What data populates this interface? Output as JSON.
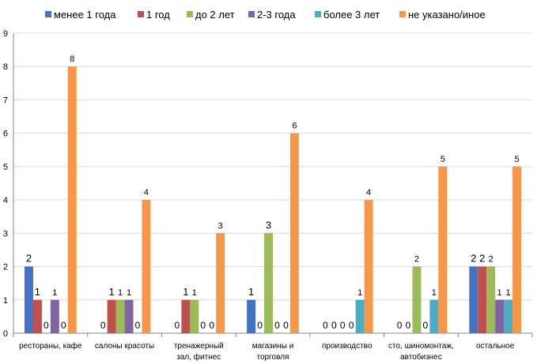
{
  "chart_data": {
    "type": "bar",
    "categories": [
      [
        "рестораны, кафе"
      ],
      [
        "салоны красоты"
      ],
      [
        "тренажерный",
        "зал, фитнес"
      ],
      [
        "магазины и",
        "торговля"
      ],
      [
        "производство"
      ],
      [
        "сто, шиномонтаж,",
        "автобизнес"
      ],
      [
        "остальное"
      ]
    ],
    "series": [
      {
        "name": "менее 1 года",
        "color": "#4472C4",
        "values": [
          2,
          0,
          0,
          1,
          0,
          0,
          2
        ]
      },
      {
        "name": "1 год",
        "color": "#C0504D",
        "values": [
          1,
          1,
          1,
          0,
          0,
          0,
          2
        ]
      },
      {
        "name": "до 2 лет",
        "color": "#9BBB59",
        "values": [
          0,
          1,
          1,
          3,
          0,
          2,
          2
        ]
      },
      {
        "name": "2-3 года",
        "color": "#8064A2",
        "values": [
          1,
          1,
          0,
          0,
          0,
          0,
          1
        ]
      },
      {
        "name": "более 3 лет",
        "color": "#4BACC6",
        "values": [
          0,
          0,
          0,
          0,
          1,
          1,
          1
        ]
      },
      {
        "name": "не указано/иное",
        "color": "#F79646",
        "values": [
          8,
          4,
          3,
          6,
          4,
          5,
          5
        ]
      }
    ],
    "ylim": [
      0,
      9
    ],
    "yticks": [
      0,
      1,
      2,
      3,
      4,
      5,
      6,
      7,
      8,
      9
    ],
    "grid": true,
    "legend_position": "top",
    "data_labels": true
  }
}
